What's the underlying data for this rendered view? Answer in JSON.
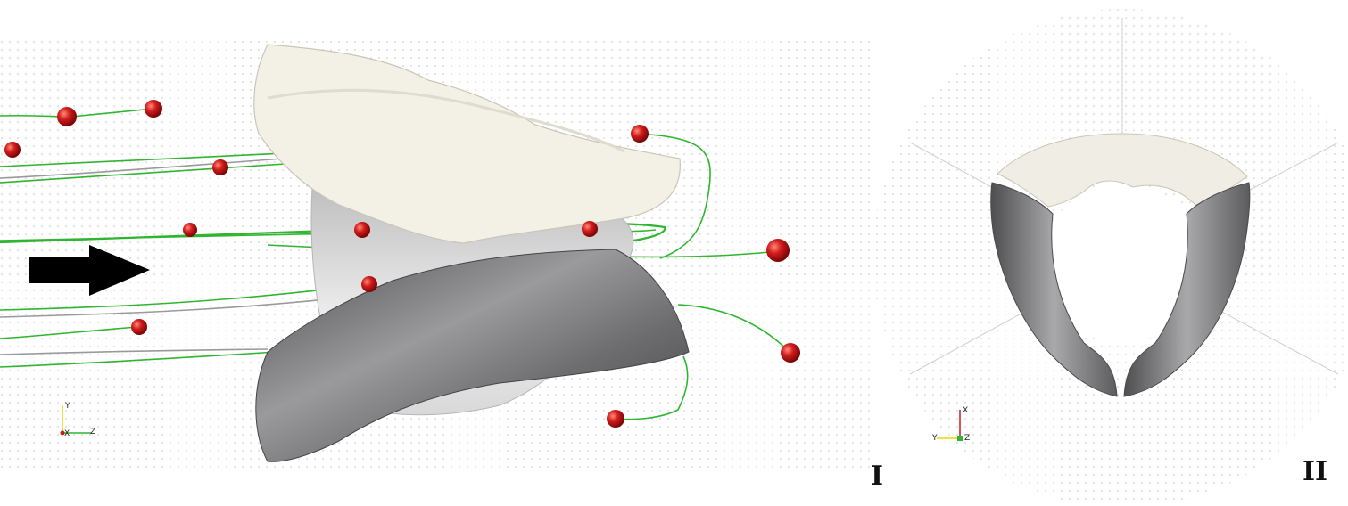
{
  "panels": [
    {
      "label": "I",
      "axes": {
        "up": "Y",
        "right": "Z",
        "out": "X"
      }
    },
    {
      "label": "II",
      "axes": {
        "up": "X",
        "right": "Z",
        "out": "Y"
      }
    }
  ],
  "colors": {
    "leaflet_open": "#f3f1e6",
    "leaflet_shadow": "#5a5a5c",
    "streamline": "#2fb52f",
    "streamline_gray": "#9a9a9a",
    "particle": "#c81a1a",
    "flow_arrow": "#000000",
    "grid_dots": "#d2d2d2"
  },
  "icons": {
    "flow": "arrow-right-icon",
    "particle": "sphere-icon"
  }
}
